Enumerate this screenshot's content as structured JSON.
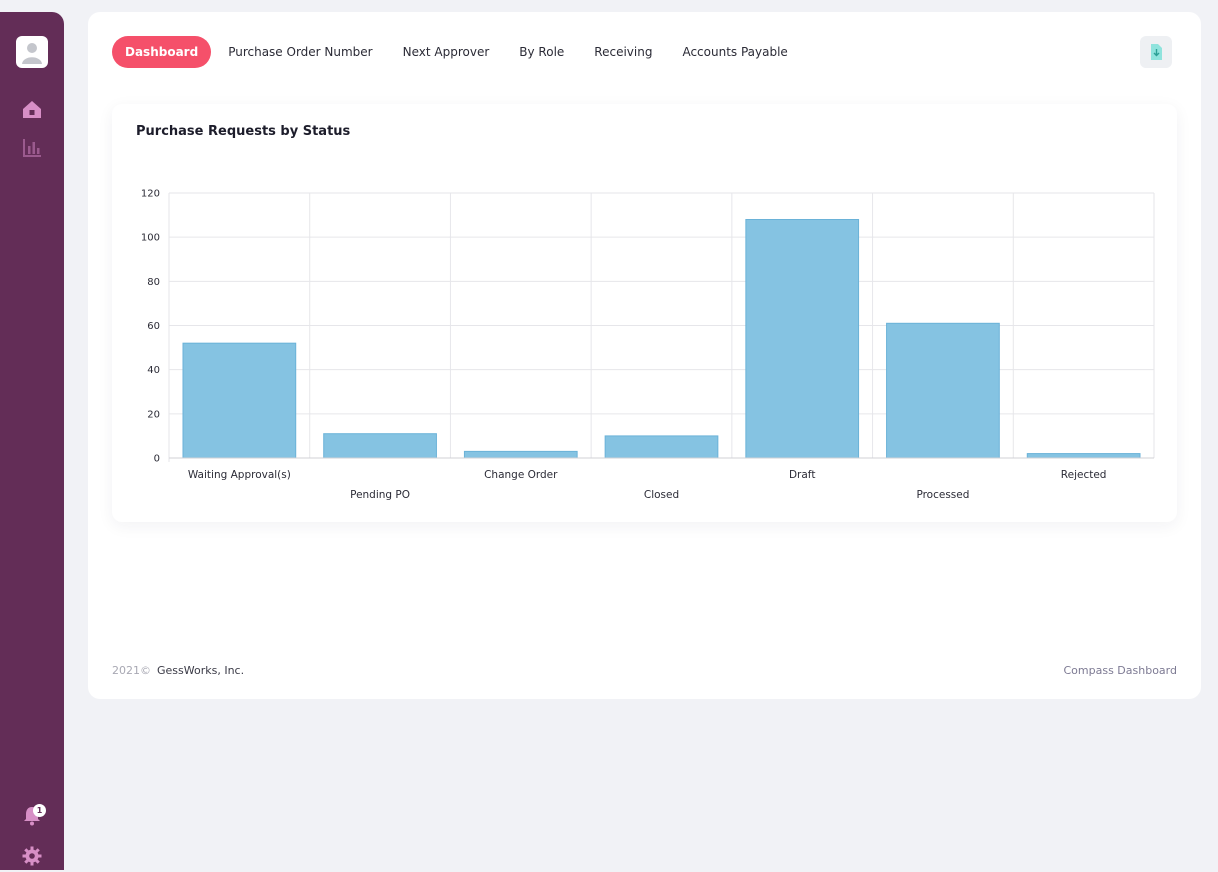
{
  "sidebar": {
    "notification_count": "1",
    "icons": [
      "user-avatar",
      "home-icon",
      "bar-chart-icon",
      "bell-icon",
      "gear-icon"
    ]
  },
  "tabs": [
    {
      "label": "Dashboard",
      "active": true
    },
    {
      "label": "Purchase Order Number",
      "active": false
    },
    {
      "label": "Next Approver",
      "active": false
    },
    {
      "label": "By Role",
      "active": false
    },
    {
      "label": "Receiving",
      "active": false
    },
    {
      "label": "Accounts Payable",
      "active": false
    }
  ],
  "export_button": {
    "icon": "file-export-icon"
  },
  "chart_card": {
    "title": "Purchase Requests by Status"
  },
  "chart_data": {
    "type": "bar",
    "title": "Purchase Requests by Status",
    "categories": [
      "Waiting Approval(s)",
      "Pending PO",
      "Change Order",
      "Closed",
      "Draft",
      "Processed",
      "Rejected"
    ],
    "values": [
      52,
      11,
      3,
      10,
      108,
      61,
      2
    ],
    "ylim": [
      0,
      120
    ],
    "yticks": [
      0,
      20,
      40,
      60,
      80,
      100,
      120
    ],
    "grid": true,
    "bar_color": "#85c3e2",
    "bar_border_color": "#6ab2d8"
  },
  "footer": {
    "year": "2021©",
    "company": "GessWorks, Inc.",
    "app_name": "Compass Dashboard"
  },
  "colors": {
    "sidebar": "#632d57",
    "accent": "#f5506a",
    "background": "#f1f2f6"
  }
}
